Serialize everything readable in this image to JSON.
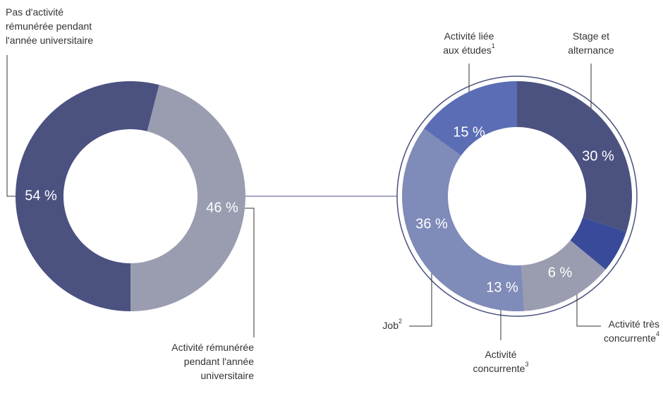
{
  "chart_data": [
    {
      "type": "donut",
      "slices": [
        {
          "label": [
            "Pas d'activité",
            "rémunérée pendant",
            "l'année universitaire"
          ],
          "value": 54,
          "value_label": "54 %",
          "color": "#4b5280"
        },
        {
          "label": [
            "Activité rémunérée",
            "pendant l'année",
            "universitaire"
          ],
          "value": 46,
          "value_label": "46 %",
          "color": "#9a9db0"
        }
      ]
    },
    {
      "type": "donut",
      "slices": [
        {
          "label": [
            "Stage et",
            "alternance"
          ],
          "value": 30,
          "value_label": "30 %",
          "color": "#4b5280"
        },
        {
          "label": [
            "Activité très",
            "concurrente"
          ],
          "note": "4",
          "value": 6,
          "value_label": "6 %",
          "color": "#3a4a9a"
        },
        {
          "label": [
            "Activité",
            "concurrente"
          ],
          "note": "3",
          "value": 13,
          "value_label": "13 %",
          "color": "#9a9db0"
        },
        {
          "label": [
            "Job"
          ],
          "note": "2",
          "value": 36,
          "value_label": "36 %",
          "color": "#7f8bb8"
        },
        {
          "label": [
            "Activité liée",
            "aux études"
          ],
          "note": "1",
          "value": 15,
          "value_label": "15 %",
          "color": "#5b6db5"
        }
      ]
    }
  ]
}
